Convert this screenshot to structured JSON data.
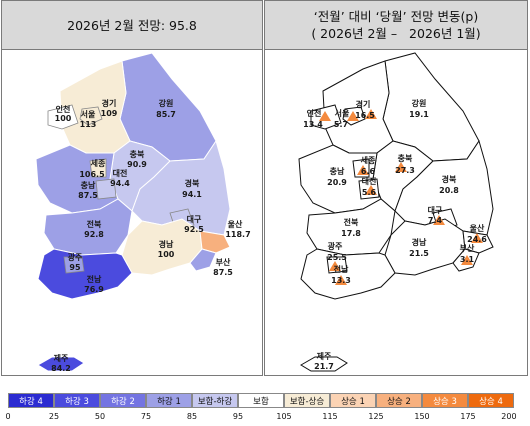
{
  "left_panel": {
    "title": "2026년 2월 전망: 95.8",
    "regions": {
      "incheon": {
        "name": "인천",
        "value": "100"
      },
      "seoul": {
        "name": "서울",
        "value": "113"
      },
      "gyeonggi": {
        "name": "경기",
        "value": "109"
      },
      "gangwon": {
        "name": "강원",
        "value": "85.7"
      },
      "chungbuk": {
        "name": "충북",
        "value": "90.9"
      },
      "sejong": {
        "name": "세종",
        "value": "106.5"
      },
      "chungnam": {
        "name": "충남",
        "value": "87.5"
      },
      "daejeon": {
        "name": "대전",
        "value": "94.4"
      },
      "gyeongbuk": {
        "name": "경북",
        "value": "94.1"
      },
      "daegu": {
        "name": "대구",
        "value": "92.5"
      },
      "jeonbuk": {
        "name": "전북",
        "value": "92.8"
      },
      "ulsan": {
        "name": "울산",
        "value": "118.7"
      },
      "gyeongnam": {
        "name": "경남",
        "value": "100"
      },
      "busan": {
        "name": "부산",
        "value": "87.5"
      },
      "gwangju": {
        "name": "광주",
        "value": "95"
      },
      "jeonnam": {
        "name": "전남",
        "value": "76.9"
      },
      "jeju": {
        "name": "제주",
        "value": "84.2"
      }
    }
  },
  "right_panel": {
    "title_line1": "‘전월’ 대비 ‘당월’ 전망 변동(p)",
    "title_line2": "( 2026년 2월 –   2026년 1월)",
    "regions": {
      "incheon": {
        "name": "인천",
        "value": "13.4"
      },
      "seoul": {
        "name": "서울",
        "value": "5.7"
      },
      "gyeonggi": {
        "name": "경기",
        "value": "16.5"
      },
      "gangwon": {
        "name": "강원",
        "value": "19.1"
      },
      "chungbuk": {
        "name": "충북",
        "value": "27.3"
      },
      "sejong": {
        "name": "세종",
        "value": "6.6"
      },
      "chungnam": {
        "name": "충남",
        "value": "20.9"
      },
      "daejeon": {
        "name": "대전",
        "value": "5.6"
      },
      "gyeongbuk": {
        "name": "경북",
        "value": "20.8"
      },
      "daegu": {
        "name": "대구",
        "value": "7.4"
      },
      "jeonbuk": {
        "name": "전북",
        "value": "17.8"
      },
      "ulsan": {
        "name": "울산",
        "value": "24.6"
      },
      "gyeongnam": {
        "name": "경남",
        "value": "21.5"
      },
      "busan": {
        "name": "부산",
        "value": "3.1"
      },
      "gwangju": {
        "name": "광주",
        "value": "25.5"
      },
      "jeonnam": {
        "name": "전남",
        "value": "13.3"
      },
      "jeju": {
        "name": "제주",
        "value": "21.7"
      }
    }
  },
  "legend": {
    "cells": [
      {
        "label": "하강 4",
        "color": "#2b2bd1"
      },
      {
        "label": "하강 3",
        "color": "#4b4bde"
      },
      {
        "label": "하강 2",
        "color": "#7474e2"
      },
      {
        "label": "하강 1",
        "color": "#9da0e6"
      },
      {
        "label": "보합-하강",
        "color": "#c6c8ef"
      },
      {
        "label": "보합",
        "color": "#ffffff"
      },
      {
        "label": "보합-상승",
        "color": "#f7ecd6"
      },
      {
        "label": "상승 1",
        "color": "#fbd3b4"
      },
      {
        "label": "상승 2",
        "color": "#f7b07e"
      },
      {
        "label": "상승 3",
        "color": "#f48a3e"
      },
      {
        "label": "상승 4",
        "color": "#ee6a0e"
      }
    ],
    "ticks": [
      "0",
      "25",
      "50",
      "75",
      "85",
      "95",
      "105",
      "115",
      "125",
      "150",
      "175",
      "200"
    ]
  },
  "colors": {
    "land_left_default": "#9da0e6",
    "up_marker": "#f48a3e",
    "header_bg": "#d9d9d9"
  }
}
